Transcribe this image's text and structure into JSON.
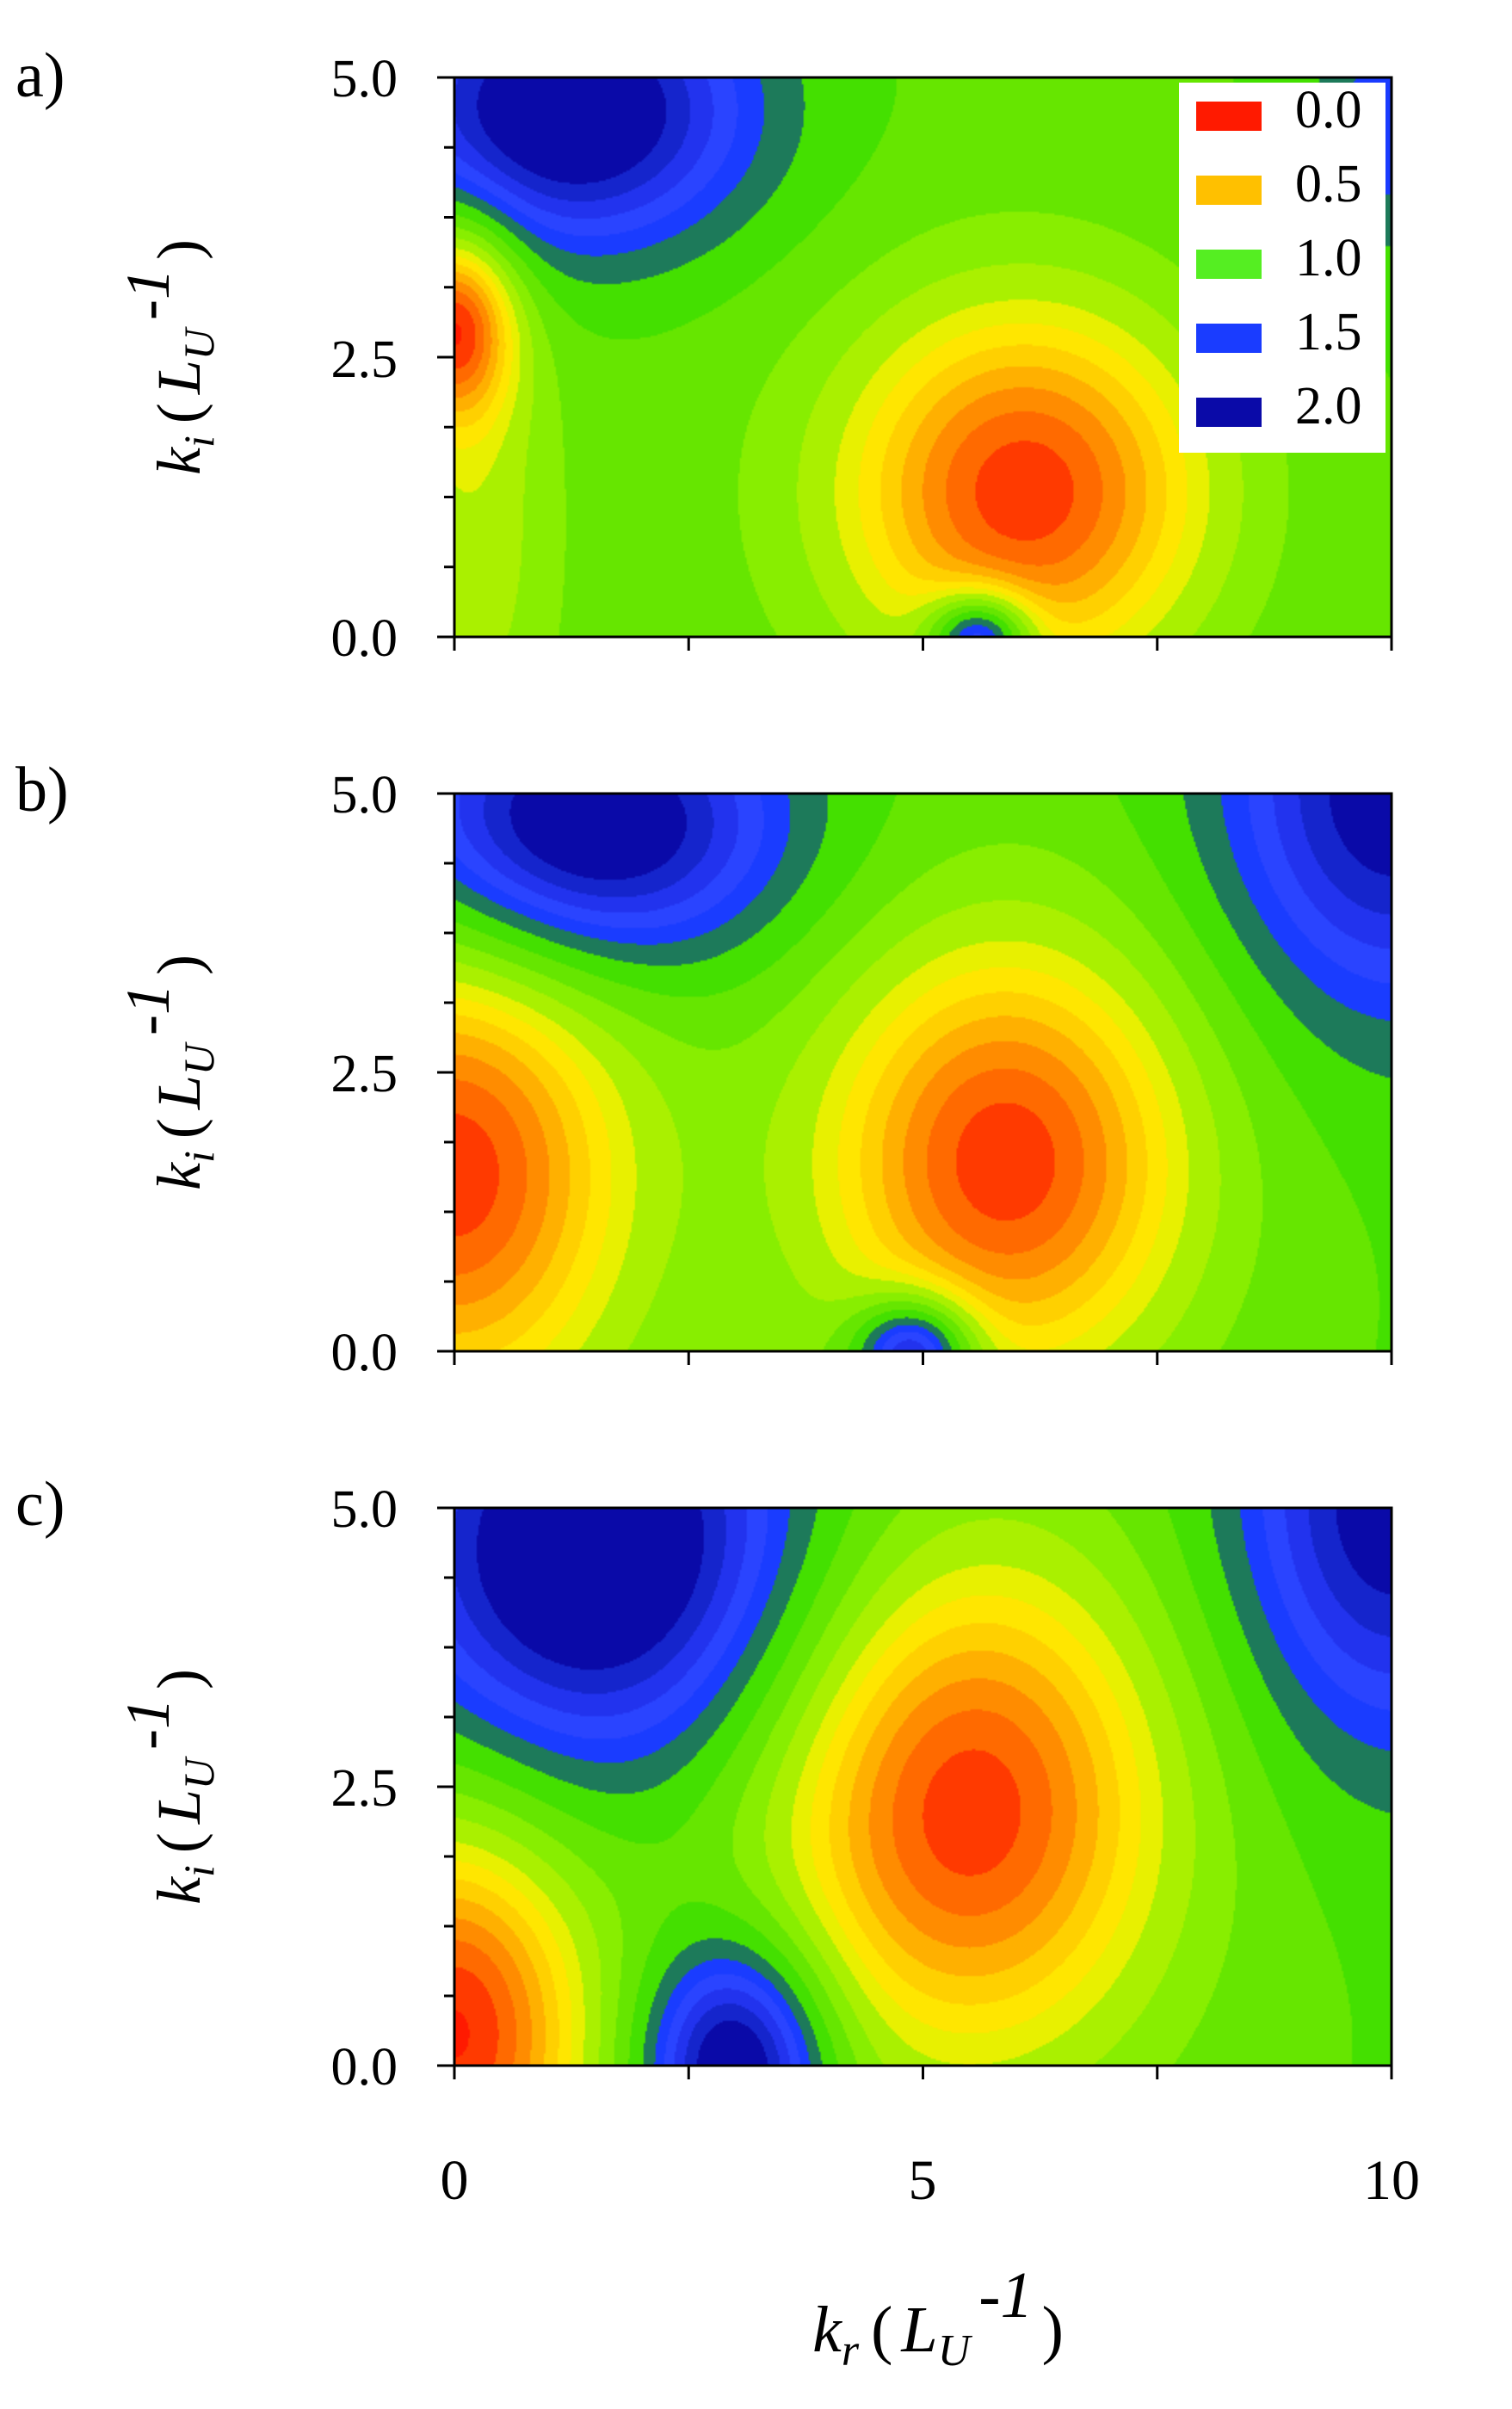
{
  "chart_data": [
    {
      "type": "heatmap",
      "panel_label": "a)",
      "ylabel_main": "k",
      "ylabel_sub": "i",
      "ylabel_open": "(",
      "ylabel_unit": "L",
      "ylabel_unit_sub": "U",
      "ylabel_exp": "-1",
      "ylabel_close": ")",
      "xlim": [
        0,
        10
      ],
      "ylim": [
        0,
        5
      ],
      "y_tick_labels": [
        "0.0",
        "2.5",
        "5.0"
      ],
      "levels": [
        0.0,
        0.5,
        1.0,
        1.5,
        2.0
      ],
      "background_value": 1.15,
      "features": [
        {
          "kr": 1.2,
          "ki": 4.7,
          "amp": 0.95,
          "sx": 1.4,
          "sy": 0.9
        },
        {
          "kr": 0.0,
          "ki": 2.8,
          "amp": -0.95,
          "sx": 0.45,
          "sy": 0.6
        },
        {
          "kr": 6.1,
          "ki": 1.3,
          "amp": -1.05,
          "sx": 1.4,
          "sy": 1.2
        },
        {
          "kr": 5.6,
          "ki": 0.0,
          "amp": 0.95,
          "sx": 0.38,
          "sy": 0.28
        },
        {
          "kr": 0.2,
          "ki": 1.0,
          "amp": -0.3,
          "sx": 0.6,
          "sy": 1.6
        },
        {
          "kr": 10.0,
          "ki": 4.6,
          "amp": 0.35,
          "sx": 0.6,
          "sy": 0.8
        }
      ]
    },
    {
      "type": "heatmap",
      "panel_label": "b)",
      "ylabel_main": "k",
      "ylabel_sub": "i",
      "ylabel_open": "(",
      "ylabel_unit": "L",
      "ylabel_unit_sub": "U",
      "ylabel_exp": "-1",
      "ylabel_close": ")",
      "xlim": [
        0,
        10
      ],
      "ylim": [
        0,
        5
      ],
      "y_tick_labels": [
        "0.0",
        "2.5",
        "5.0"
      ],
      "levels": [
        0.0,
        0.5,
        1.0,
        1.5,
        2.0
      ],
      "background_value": 1.15,
      "features": [
        {
          "kr": 1.4,
          "ki": 4.7,
          "amp": 0.95,
          "sx": 1.5,
          "sy": 0.9
        },
        {
          "kr": 0.0,
          "ki": 1.6,
          "amp": -1.0,
          "sx": 1.3,
          "sy": 1.5
        },
        {
          "kr": 5.9,
          "ki": 1.7,
          "amp": -1.05,
          "sx": 1.4,
          "sy": 1.4
        },
        {
          "kr": 4.9,
          "ki": 0.0,
          "amp": 0.95,
          "sx": 0.45,
          "sy": 0.35
        },
        {
          "kr": 10.0,
          "ki": 5.0,
          "amp": 0.75,
          "sx": 1.3,
          "sy": 1.4
        }
      ]
    },
    {
      "type": "heatmap",
      "panel_label": "c)",
      "ylabel_main": "k",
      "ylabel_sub": "i",
      "ylabel_open": "(",
      "ylabel_unit": "L",
      "ylabel_unit_sub": "U",
      "ylabel_exp": "-1",
      "ylabel_close": ")",
      "xlabel_main": "k",
      "xlabel_sub": "r",
      "xlabel_open": "(",
      "xlabel_unit": "L",
      "xlabel_unit_sub": "U",
      "xlabel_exp": "-1",
      "xlabel_close": ")",
      "xlim": [
        0,
        10
      ],
      "ylim": [
        0,
        5
      ],
      "x_tick_labels": [
        "0",
        "5",
        "10"
      ],
      "y_tick_labels": [
        "0.0",
        "2.5",
        "5.0"
      ],
      "levels": [
        0.0,
        0.5,
        1.0,
        1.5,
        2.0
      ],
      "background_value": 1.15,
      "features": [
        {
          "kr": 1.5,
          "ki": 4.6,
          "amp": 1.0,
          "sx": 1.6,
          "sy": 1.4
        },
        {
          "kr": 0.0,
          "ki": 0.3,
          "amp": -1.05,
          "sx": 1.0,
          "sy": 1.3
        },
        {
          "kr": 5.5,
          "ki": 2.3,
          "amp": -1.05,
          "sx": 1.5,
          "sy": 1.6
        },
        {
          "kr": 3.0,
          "ki": 0.0,
          "amp": 0.95,
          "sx": 0.7,
          "sy": 0.8
        },
        {
          "kr": 10.0,
          "ki": 5.0,
          "amp": 0.75,
          "sx": 1.2,
          "sy": 1.5
        }
      ]
    }
  ],
  "legend": {
    "placement": "top-right of panel a",
    "entries": [
      {
        "label": "0.0",
        "color": "#ff1a00"
      },
      {
        "label": "0.5",
        "color": "#ffc000"
      },
      {
        "label": "1.0",
        "color": "#55ee22"
      },
      {
        "label": "1.5",
        "color": "#1a3cff"
      },
      {
        "label": "2.0",
        "color": "#0a0aa8"
      }
    ]
  },
  "colors": {
    "red": "#ff1a00",
    "orange": "#ff8c00",
    "yellow": "#ffe600",
    "lime": "#aaf000",
    "green": "#44e000",
    "teal": "#1d7a5a",
    "blue": "#1a3cff",
    "navy": "#0a0aa8"
  }
}
